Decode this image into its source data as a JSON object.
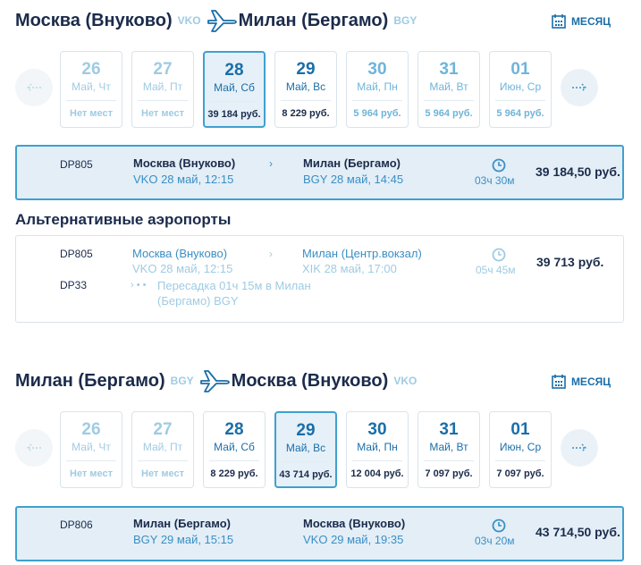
{
  "outbound": {
    "from_city": "Москва (Внуково)",
    "from_code": "VKO",
    "to_city": "Милан (Бергамо)",
    "to_code": "BGY",
    "month_label": "МЕСЯЦ",
    "days": [
      {
        "num": "26",
        "name": "Май, Чт",
        "price": "Нет мест",
        "state": "muted"
      },
      {
        "num": "27",
        "name": "Май, Пт",
        "price": "Нет мест",
        "state": "muted"
      },
      {
        "num": "28",
        "name": "Май, Сб",
        "price": "39 184 руб.",
        "state": "selected"
      },
      {
        "num": "29",
        "name": "Май, Вс",
        "price": "8 229 руб.",
        "state": "avail"
      },
      {
        "num": "30",
        "name": "Май, Пн",
        "price": "5 964 руб.",
        "state": "blue"
      },
      {
        "num": "31",
        "name": "Май, Вт",
        "price": "5 964 руб.",
        "state": "blue"
      },
      {
        "num": "01",
        "name": "Июн, Ср",
        "price": "5 964 руб.",
        "state": "blue"
      }
    ],
    "flight": {
      "number": "DP805",
      "dep_city": "Москва (Внуково)",
      "dep_info": "VKO 28 май, 12:15",
      "arr_city": "Милан (Бергамо)",
      "arr_info": "BGY 28 май, 14:45",
      "duration": "03ч 30м",
      "price": "39 184,50 руб."
    }
  },
  "alternative": {
    "title": "Альтернативные аэропорты",
    "number1": "DP805",
    "number2": "DP33",
    "dep_city": "Москва (Внуково)",
    "dep_info": "VKO 28 май, 12:15",
    "arr_city": "Милан (Центр.вокзал)",
    "arr_info": "XIK 28 май, 17:00",
    "transfer": "Пересадка 01ч 15м в Милан (Бергамо) BGY",
    "duration": "05ч 45м",
    "price": "39 713 руб."
  },
  "return": {
    "from_city": "Милан (Бергамо)",
    "from_code": "BGY",
    "to_city": "Москва (Внуково)",
    "to_code": "VKO",
    "month_label": "МЕСЯЦ",
    "days": [
      {
        "num": "26",
        "name": "Май, Чт",
        "price": "Нет мест",
        "state": "muted"
      },
      {
        "num": "27",
        "name": "Май, Пт",
        "price": "Нет мест",
        "state": "muted"
      },
      {
        "num": "28",
        "name": "Май, Сб",
        "price": "8 229 руб.",
        "state": "avail"
      },
      {
        "num": "29",
        "name": "Май, Вс",
        "price": "43 714 руб.",
        "state": "selected"
      },
      {
        "num": "30",
        "name": "Май, Пн",
        "price": "12 004 руб.",
        "state": "avail"
      },
      {
        "num": "31",
        "name": "Май, Вт",
        "price": "7 097 руб.",
        "state": "avail"
      },
      {
        "num": "01",
        "name": "Июн, Ср",
        "price": "7 097 руб.",
        "state": "avail"
      }
    ],
    "flight": {
      "number": "DP806",
      "dep_city": "Милан (Бергамо)",
      "dep_info": "BGY 29 май, 15:15",
      "arr_city": "Москва (Внуково)",
      "arr_info": "VKO 29 май, 19:35",
      "duration": "03ч 20м",
      "price": "43 714,50 руб."
    }
  },
  "colors": {
    "accent": "#3fa0cf",
    "text_dark": "#1b2b4b",
    "text_blue": "#1a6ea8",
    "text_muted": "#9fcbe3",
    "selected_bg": "#e5f0f8"
  }
}
